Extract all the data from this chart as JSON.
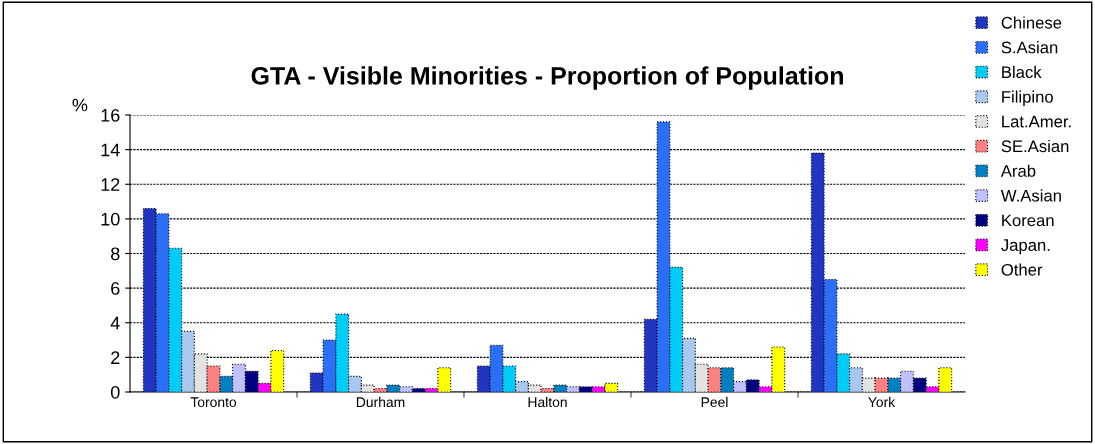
{
  "chart_data": {
    "type": "bar",
    "title": "GTA - Visible Minorities - Proportion of Population",
    "ylabel": "%",
    "categories": [
      "Toronto",
      "Durham",
      "Halton",
      "Peel",
      "York"
    ],
    "series": [
      {
        "name": "Chinese",
        "color": "#2035c0",
        "values": [
          10.6,
          1.1,
          1.5,
          4.2,
          13.8
        ]
      },
      {
        "name": "S.Asian",
        "color": "#2a6ff5",
        "values": [
          10.3,
          3.0,
          2.7,
          15.6,
          6.5
        ]
      },
      {
        "name": "Black",
        "color": "#00ccf8",
        "values": [
          8.3,
          4.5,
          1.5,
          7.2,
          2.2
        ]
      },
      {
        "name": "Filipino",
        "color": "#a8c8f0",
        "values": [
          3.5,
          0.9,
          0.6,
          3.1,
          1.4
        ]
      },
      {
        "name": "Lat.Amer.",
        "color": "#e2e2e2",
        "values": [
          2.2,
          0.4,
          0.4,
          1.6,
          0.8
        ]
      },
      {
        "name": "SE.Asian",
        "color": "#ff8080",
        "values": [
          1.5,
          0.2,
          0.2,
          1.4,
          0.8
        ]
      },
      {
        "name": "Arab",
        "color": "#0080c0",
        "values": [
          0.9,
          0.4,
          0.4,
          1.4,
          0.8
        ]
      },
      {
        "name": "W.Asian",
        "color": "#c0c0ff",
        "values": [
          1.6,
          0.3,
          0.3,
          0.6,
          1.2
        ]
      },
      {
        "name": "Korean",
        "color": "#000080",
        "values": [
          1.2,
          0.2,
          0.3,
          0.7,
          0.8
        ]
      },
      {
        "name": "Japan.",
        "color": "#ff00ff",
        "values": [
          0.5,
          0.2,
          0.3,
          0.3,
          0.3
        ]
      },
      {
        "name": "Other",
        "color": "#ffff00",
        "values": [
          2.4,
          1.4,
          0.5,
          2.6,
          1.4
        ]
      }
    ],
    "ylim": [
      0,
      16
    ],
    "yticks": [
      0,
      2,
      4,
      6,
      8,
      10,
      12,
      14,
      16
    ],
    "grid": "y",
    "legend": "right"
  }
}
